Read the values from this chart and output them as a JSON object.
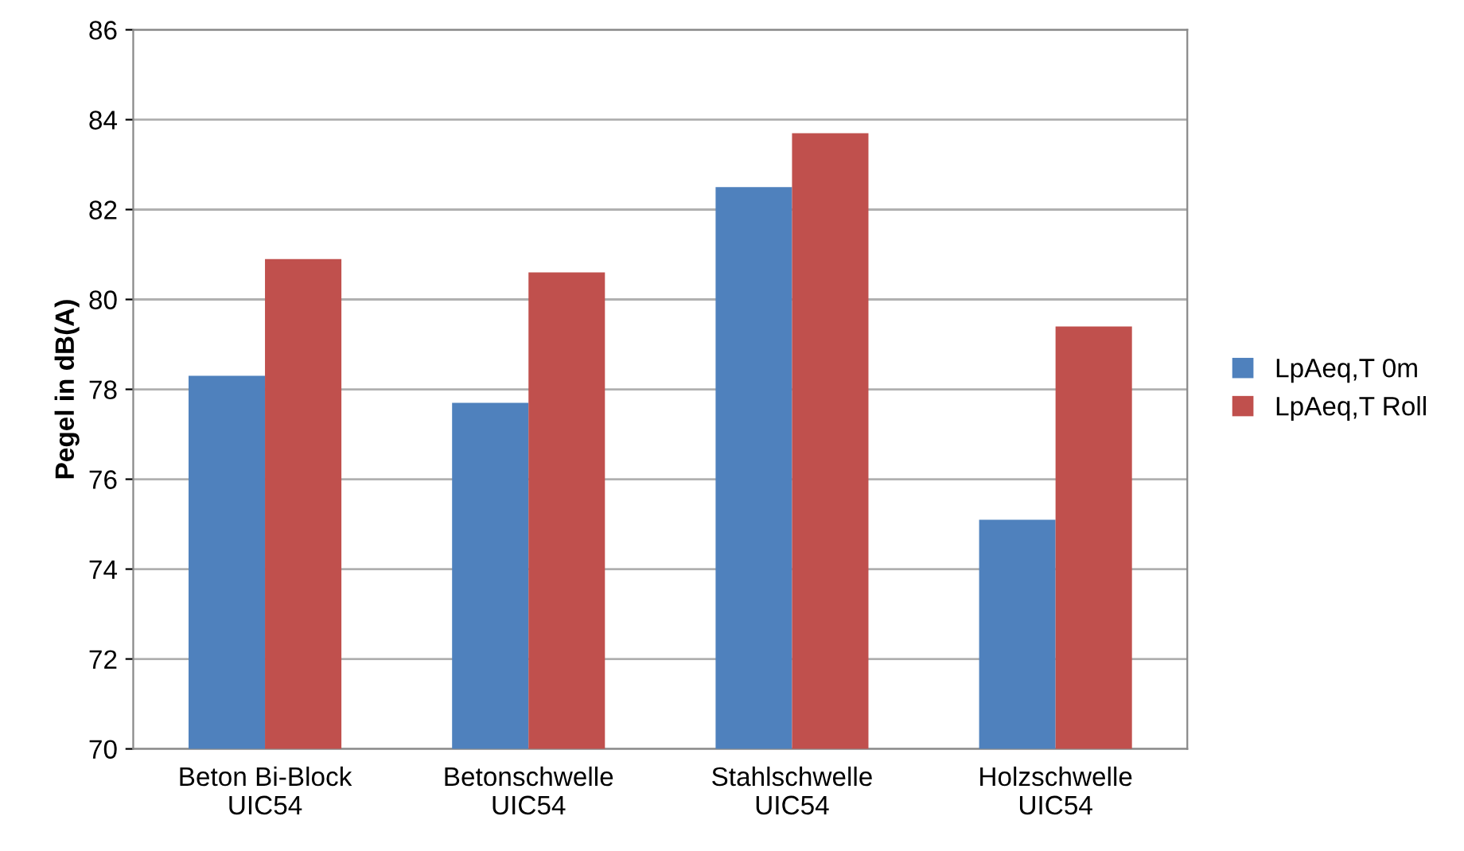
{
  "chart_data": {
    "type": "bar",
    "ylabel": "Pegel in dB(A)",
    "categories": [
      "Beton Bi-Block\nUIC54",
      "Betonschwelle\nUIC54",
      "Stahlschwelle\nUIC54",
      "Holzschwelle\nUIC54"
    ],
    "series": [
      {
        "name": "LpAeq,T 0m",
        "color": "#4f81bd",
        "values": [
          78.3,
          77.7,
          82.5,
          75.1
        ]
      },
      {
        "name": "LpAeq,T Roll",
        "color": "#c0504d",
        "values": [
          80.9,
          80.6,
          83.7,
          79.4
        ]
      }
    ],
    "ylim": [
      70,
      86
    ],
    "yticks": [
      70,
      72,
      74,
      76,
      78,
      80,
      82,
      84,
      86
    ],
    "grid": "y",
    "legend": "right"
  }
}
